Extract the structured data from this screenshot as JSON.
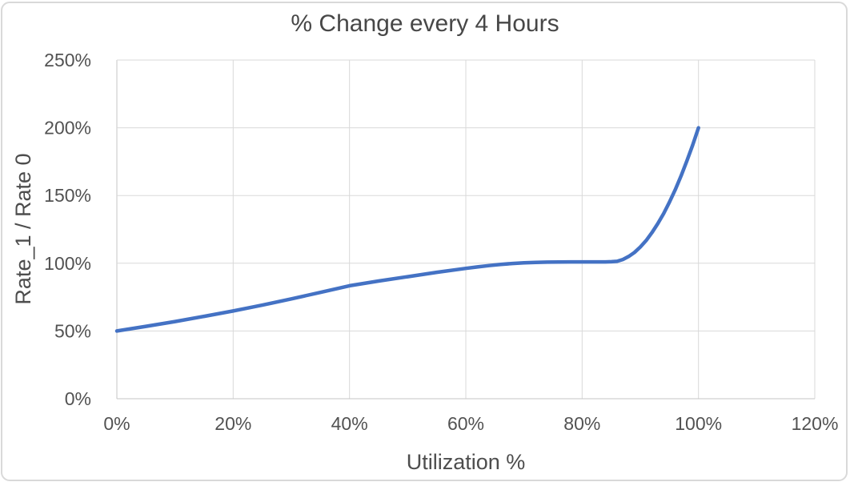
{
  "chart_data": {
    "type": "line",
    "title": "% Change every 4 Hours",
    "xlabel": "Utilization %",
    "ylabel": "Rate_1 / Rate 0",
    "xlim": [
      0,
      120
    ],
    "ylim": [
      0,
      250
    ],
    "grid": true,
    "legend": false,
    "x_ticks": [
      {
        "value": 0,
        "label": "0%"
      },
      {
        "value": 20,
        "label": "20%"
      },
      {
        "value": 40,
        "label": "40%"
      },
      {
        "value": 60,
        "label": "60%"
      },
      {
        "value": 80,
        "label": "80%"
      },
      {
        "value": 100,
        "label": "100%"
      },
      {
        "value": 120,
        "label": "120%"
      }
    ],
    "y_ticks": [
      {
        "value": 0,
        "label": "0%"
      },
      {
        "value": 50,
        "label": "50%"
      },
      {
        "value": 100,
        "label": "100%"
      },
      {
        "value": 150,
        "label": "150%"
      },
      {
        "value": 200,
        "label": "200%"
      },
      {
        "value": 250,
        "label": "250%"
      }
    ],
    "series": [
      {
        "name": "Rate_1 / Rate 0",
        "color": "#4472C4",
        "points": [
          [
            0,
            50
          ],
          [
            5,
            53.4
          ],
          [
            10,
            57
          ],
          [
            15,
            60.8
          ],
          [
            20,
            64.8
          ],
          [
            25,
            69.1
          ],
          [
            30,
            73.7
          ],
          [
            35,
            78.5
          ],
          [
            40,
            83.4
          ],
          [
            45,
            86.9
          ],
          [
            50,
            90.1
          ],
          [
            55,
            93.3
          ],
          [
            60,
            96.2
          ],
          [
            62,
            97.3
          ],
          [
            64,
            98.3
          ],
          [
            66,
            99.1
          ],
          [
            68,
            99.8
          ],
          [
            70,
            100.3
          ],
          [
            72,
            100.6
          ],
          [
            74,
            100.8
          ],
          [
            76,
            100.9
          ],
          [
            78,
            101
          ],
          [
            80,
            101
          ],
          [
            82,
            101
          ],
          [
            84,
            101
          ],
          [
            85,
            101.1
          ],
          [
            86,
            101.4
          ],
          [
            87,
            102.8
          ],
          [
            88,
            105
          ],
          [
            89,
            108
          ],
          [
            90,
            112
          ],
          [
            91,
            116.8
          ],
          [
            92,
            122.6
          ],
          [
            93,
            129.2
          ],
          [
            94,
            136.6
          ],
          [
            95,
            145
          ],
          [
            96,
            154.2
          ],
          [
            97,
            164.4
          ],
          [
            98,
            175.4
          ],
          [
            99,
            187.2
          ],
          [
            100,
            200
          ]
        ]
      }
    ]
  },
  "colors": {
    "line": "#4472C4",
    "gridline": "#D9D9D9",
    "axis_line": "#C6C6C6",
    "frame_border": "#D9D9D9",
    "background": "#FFFFFF"
  }
}
